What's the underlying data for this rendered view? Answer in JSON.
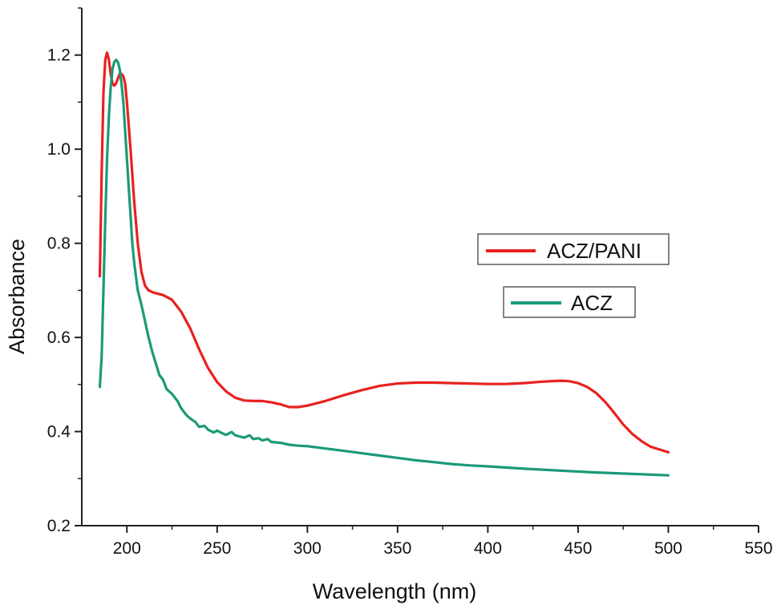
{
  "chart_data": {
    "type": "line",
    "xlabel": "Wavelength (nm)",
    "ylabel": "Absorbance",
    "xlim": [
      175,
      550
    ],
    "ylim": [
      0.2,
      1.3
    ],
    "xticks": [
      200,
      250,
      300,
      350,
      400,
      450,
      500,
      550
    ],
    "yticks": [
      0.2,
      0.4,
      0.6,
      0.8,
      1.0,
      1.2
    ],
    "xtick_labels": [
      "200",
      "250",
      "300",
      "350",
      "400",
      "450",
      "500",
      "550"
    ],
    "ytick_labels": [
      "0.2",
      "0.4",
      "0.6",
      "0.8",
      "1.0",
      "1.2"
    ],
    "grid": false,
    "legend_placement": "right",
    "series": [
      {
        "name": "ACZ/PANI",
        "color": "#e8211f",
        "x": [
          185,
          186,
          187,
          188,
          189,
          190,
          191,
          192,
          193,
          194,
          195,
          196,
          197,
          198,
          199,
          200,
          202,
          204,
          206,
          208,
          210,
          212,
          215,
          220,
          225,
          230,
          235,
          240,
          245,
          250,
          255,
          260,
          265,
          270,
          275,
          280,
          285,
          290,
          295,
          300,
          310,
          320,
          330,
          340,
          350,
          360,
          370,
          380,
          390,
          400,
          410,
          420,
          430,
          440,
          445,
          450,
          455,
          460,
          465,
          470,
          475,
          480,
          485,
          490,
          495,
          500
        ],
        "y": [
          0.73,
          0.95,
          1.12,
          1.19,
          1.205,
          1.19,
          1.16,
          1.14,
          1.135,
          1.14,
          1.15,
          1.16,
          1.16,
          1.155,
          1.14,
          1.1,
          1.0,
          0.89,
          0.8,
          0.74,
          0.71,
          0.7,
          0.695,
          0.69,
          0.68,
          0.655,
          0.62,
          0.575,
          0.535,
          0.505,
          0.485,
          0.472,
          0.466,
          0.465,
          0.465,
          0.462,
          0.458,
          0.452,
          0.452,
          0.455,
          0.465,
          0.477,
          0.488,
          0.497,
          0.502,
          0.504,
          0.504,
          0.503,
          0.502,
          0.501,
          0.501,
          0.503,
          0.506,
          0.508,
          0.507,
          0.503,
          0.495,
          0.482,
          0.463,
          0.44,
          0.415,
          0.395,
          0.38,
          0.368,
          0.362,
          0.356
        ]
      },
      {
        "name": "ACZ",
        "color": "#1a9a78",
        "x": [
          185,
          186,
          187,
          188,
          189,
          190,
          191,
          192,
          193,
          194,
          195,
          196,
          197,
          198,
          199,
          200,
          201,
          202,
          203,
          204,
          205,
          206,
          208,
          210,
          212,
          214,
          216,
          218,
          220,
          222,
          225,
          228,
          230,
          233,
          235,
          238,
          240,
          243,
          245,
          248,
          250,
          253,
          255,
          258,
          260,
          263,
          265,
          268,
          270,
          273,
          275,
          278,
          280,
          285,
          290,
          295,
          300,
          310,
          320,
          330,
          340,
          350,
          360,
          370,
          380,
          390,
          400,
          420,
          440,
          460,
          480,
          500
        ],
        "y": [
          0.495,
          0.56,
          0.7,
          0.85,
          0.98,
          1.07,
          1.13,
          1.17,
          1.185,
          1.19,
          1.185,
          1.17,
          1.14,
          1.1,
          1.04,
          0.98,
          0.92,
          0.86,
          0.8,
          0.76,
          0.73,
          0.7,
          0.67,
          0.635,
          0.6,
          0.57,
          0.545,
          0.52,
          0.51,
          0.49,
          0.48,
          0.465,
          0.45,
          0.435,
          0.428,
          0.42,
          0.41,
          0.412,
          0.404,
          0.398,
          0.402,
          0.396,
          0.393,
          0.399,
          0.392,
          0.389,
          0.387,
          0.392,
          0.384,
          0.386,
          0.381,
          0.384,
          0.378,
          0.376,
          0.372,
          0.37,
          0.369,
          0.364,
          0.359,
          0.354,
          0.349,
          0.344,
          0.339,
          0.335,
          0.331,
          0.328,
          0.326,
          0.321,
          0.317,
          0.313,
          0.31,
          0.307
        ]
      }
    ]
  }
}
